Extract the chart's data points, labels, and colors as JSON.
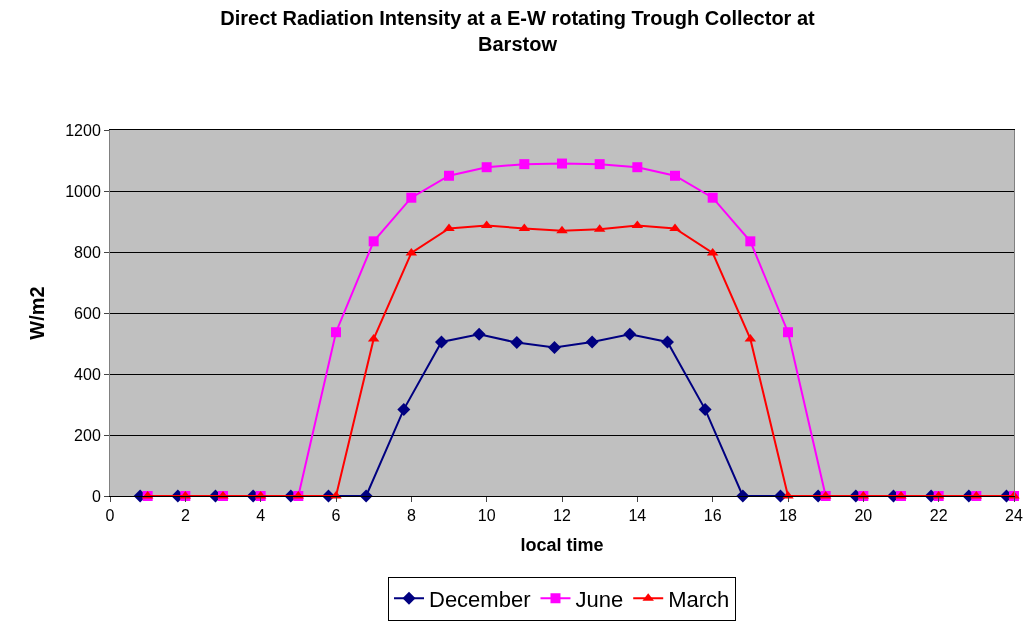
{
  "chart_data": {
    "type": "line",
    "title": "Direct Radiation Intensity at a E-W rotating Trough Collector at Barstow",
    "xlabel": "local time",
    "ylabel": "W/m2",
    "xlim": [
      0,
      24
    ],
    "xticks": [
      0,
      2,
      4,
      6,
      8,
      10,
      12,
      14,
      16,
      18,
      20,
      22,
      24
    ],
    "ylim": [
      0,
      1200
    ],
    "yticks": [
      0,
      200,
      400,
      600,
      800,
      1000,
      1200
    ],
    "grid": "y",
    "legend": "bottom",
    "series": [
      {
        "name": "December",
        "color": "#000080",
        "marker": "diamond",
        "x": [
          0.8,
          1.8,
          2.8,
          3.8,
          4.8,
          5.8,
          6.8,
          7.8,
          8.8,
          9.8,
          10.8,
          11.8,
          12.8,
          13.8,
          14.8,
          15.8,
          16.8,
          17.8,
          18.8,
          19.8,
          20.8,
          21.8,
          22.8,
          23.8
        ],
        "values": [
          0,
          0,
          0,
          0,
          0,
          0,
          0,
          284,
          505,
          530,
          503,
          487,
          505,
          530,
          505,
          284,
          0,
          0,
          0,
          0,
          0,
          0,
          0,
          0
        ]
      },
      {
        "name": "June",
        "color": "#ff00ff",
        "marker": "square",
        "x": [
          1,
          2,
          3,
          4,
          5,
          6,
          7,
          8,
          9,
          10,
          11,
          12,
          13,
          14,
          15,
          16,
          17,
          18,
          19,
          20,
          21,
          22,
          23,
          24
        ],
        "values": [
          0,
          0,
          0,
          0,
          0,
          537,
          835,
          978,
          1050,
          1078,
          1088,
          1090,
          1088,
          1078,
          1050,
          978,
          835,
          537,
          0,
          0,
          0,
          0,
          0,
          0
        ]
      },
      {
        "name": "March",
        "color": "#ff0000",
        "marker": "triangle",
        "x": [
          1,
          2,
          3,
          4,
          5,
          6,
          7,
          8,
          9,
          10,
          11,
          12,
          13,
          14,
          15,
          16,
          17,
          18,
          19,
          20,
          21,
          22,
          23,
          24
        ],
        "values": [
          0,
          0,
          0,
          0,
          0,
          0,
          515,
          797,
          877,
          887,
          877,
          870,
          875,
          887,
          877,
          797,
          515,
          0,
          0,
          0,
          0,
          0,
          0,
          0
        ]
      }
    ]
  }
}
